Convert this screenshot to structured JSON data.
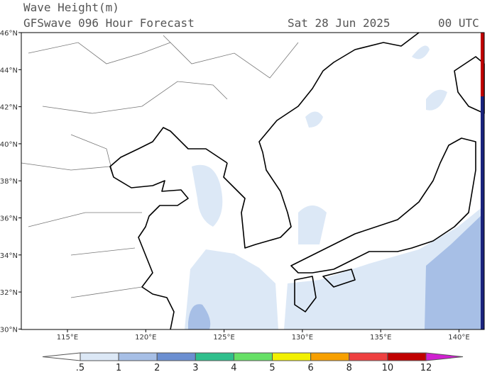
{
  "header": {
    "title": "Wave Height(m)",
    "subtitle": "GFSwave 096 Hour Forecast",
    "date": "Sat 28 Jun 2025",
    "time": "00 UTC"
  },
  "map": {
    "lat_labels": [
      "46°N",
      "44°N",
      "42°N",
      "40°N",
      "38°N",
      "36°N",
      "34°N",
      "32°N",
      "30°N"
    ],
    "lon_labels": [
      "115°E",
      "120°E",
      "125°E",
      "130°E",
      "135°E",
      "140°E"
    ]
  },
  "colorbar": {
    "labels": [
      ".5",
      "1",
      "2",
      "3",
      "4",
      "5",
      "6",
      "8",
      "10",
      "12"
    ],
    "colors": [
      "#ffffff",
      "#dce8f6",
      "#a7bfe6",
      "#6b8fd1",
      "#2fbf8c",
      "#66e066",
      "#f2f000",
      "#f7a000",
      "#ee4040",
      "#c00000",
      "#d020d0"
    ]
  }
}
